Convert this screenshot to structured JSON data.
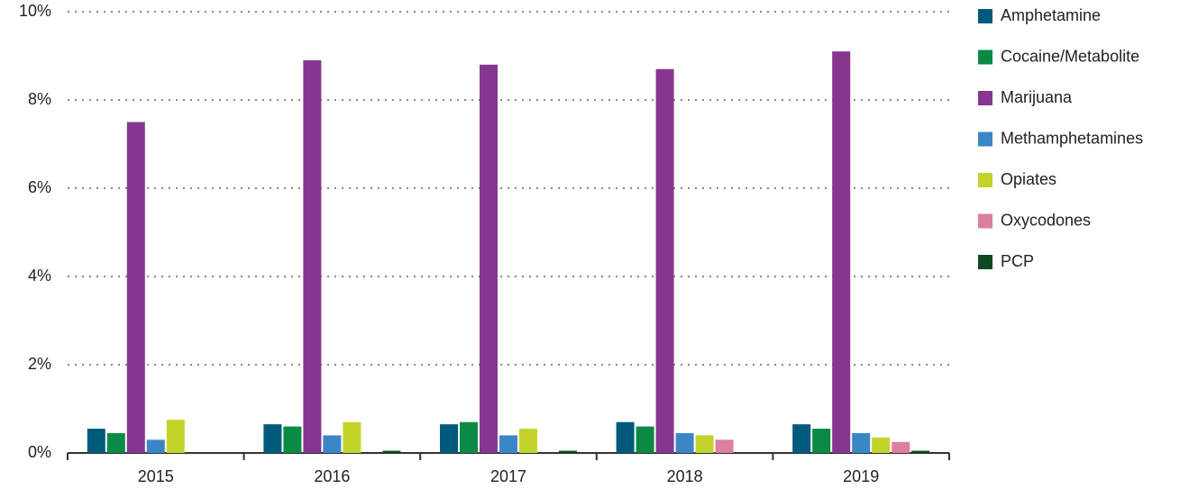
{
  "chart_data": {
    "type": "bar",
    "categories": [
      "2015",
      "2016",
      "2017",
      "2018",
      "2019"
    ],
    "series": [
      {
        "name": "Amphetamine",
        "color": "#005a7c",
        "values": [
          0.55,
          0.65,
          0.65,
          0.7,
          0.65
        ]
      },
      {
        "name": "Cocaine/Metabolite",
        "color": "#0a8a45",
        "values": [
          0.45,
          0.6,
          0.7,
          0.6,
          0.55
        ]
      },
      {
        "name": "Marijuana",
        "color": "#87368f",
        "values": [
          7.5,
          8.9,
          8.8,
          8.7,
          9.1
        ]
      },
      {
        "name": "Methamphetamines",
        "color": "#3b87c6",
        "values": [
          0.3,
          0.4,
          0.4,
          0.45,
          0.45
        ]
      },
      {
        "name": "Opiates",
        "color": "#c2d32a",
        "values": [
          0.75,
          0.7,
          0.55,
          0.4,
          0.35
        ]
      },
      {
        "name": "Oxycodones",
        "color": "#dc7ea1",
        "values": [
          null,
          null,
          null,
          0.3,
          0.25
        ]
      },
      {
        "name": "PCP",
        "color": "#0b4a22",
        "values": [
          null,
          0.05,
          0.05,
          null,
          0.05
        ]
      }
    ],
    "ylim": [
      0,
      10
    ],
    "yticks": [
      {
        "value": 0,
        "label": "0%"
      },
      {
        "value": 2,
        "label": "2%"
      },
      {
        "value": 4,
        "label": "4%"
      },
      {
        "value": 6,
        "label": "6%"
      },
      {
        "value": 8,
        "label": "8%"
      },
      {
        "value": 10,
        "label": "10%"
      }
    ],
    "grid": true,
    "legend": "right"
  }
}
